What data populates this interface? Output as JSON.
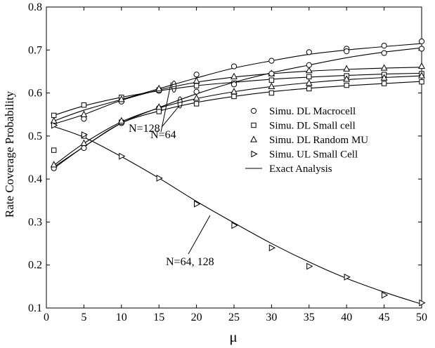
{
  "chart_data": {
    "type": "line",
    "xlabel": "μ",
    "ylabel": "Rate Coverage Probability",
    "xlim": [
      0,
      50
    ],
    "ylim": [
      0.1,
      0.8
    ],
    "xticks": [
      0,
      5,
      10,
      15,
      20,
      25,
      30,
      35,
      40,
      45,
      50
    ],
    "yticks": [
      0.1,
      0.2,
      0.3,
      0.4,
      0.5,
      0.6,
      0.7,
      0.8
    ],
    "grid": false,
    "legend_position": "right",
    "legend": [
      {
        "label": "Simu. DL Macrocell",
        "marker": "circle"
      },
      {
        "label": "Simu. DL Small cell",
        "marker": "square"
      },
      {
        "label": "Simu. DL Random MU",
        "marker": "triangle-up"
      },
      {
        "label": "Simu. UL Small Cell",
        "marker": "triangle-right"
      },
      {
        "label": "Exact Analysis",
        "marker": "line"
      }
    ],
    "series": [
      {
        "group": "N=128",
        "marker": "circle",
        "x": [
          1,
          5,
          10,
          15,
          20,
          25,
          30,
          35,
          40,
          45,
          50
        ],
        "y": [
          0.53,
          0.54,
          0.58,
          0.605,
          0.643,
          0.662,
          0.675,
          0.695,
          0.703,
          0.71,
          0.72
        ]
      },
      {
        "group": "N=128",
        "marker": "square",
        "x": [
          1,
          5,
          10,
          15,
          20,
          25,
          30,
          35,
          40,
          45,
          50
        ],
        "y": [
          0.548,
          0.572,
          0.59,
          0.607,
          0.617,
          0.623,
          0.63,
          0.638,
          0.64,
          0.643,
          0.645
        ]
      },
      {
        "group": "N=128",
        "marker": "triangle-up",
        "x": [
          1,
          5,
          10,
          15,
          20,
          25,
          30,
          35,
          40,
          45,
          50
        ],
        "y": [
          0.535,
          0.55,
          0.585,
          0.61,
          0.628,
          0.638,
          0.645,
          0.652,
          0.656,
          0.658,
          0.662
        ]
      },
      {
        "group": "N=64",
        "marker": "circle",
        "x": [
          1,
          5,
          10,
          15,
          20,
          25,
          30,
          35,
          40,
          45,
          50
        ],
        "y": [
          0.425,
          0.472,
          0.53,
          0.565,
          0.603,
          0.62,
          0.645,
          0.665,
          0.697,
          0.693,
          0.703
        ]
      },
      {
        "group": "N=64",
        "marker": "square",
        "x": [
          1,
          5,
          10,
          15,
          20,
          25,
          30,
          35,
          40,
          45,
          50
        ],
        "y": [
          0.467,
          0.5,
          0.532,
          0.557,
          0.575,
          0.592,
          0.6,
          0.61,
          0.618,
          0.622,
          0.626
        ]
      },
      {
        "group": "N=64",
        "marker": "triangle-up",
        "x": [
          1,
          5,
          10,
          15,
          20,
          25,
          30,
          35,
          40,
          45,
          50
        ],
        "y": [
          0.433,
          0.483,
          0.535,
          0.567,
          0.588,
          0.603,
          0.615,
          0.623,
          0.632,
          0.635,
          0.64
        ]
      },
      {
        "group": "N=64, 128",
        "marker": "triangle-right",
        "x": [
          1,
          5,
          10,
          15,
          20,
          25,
          30,
          35,
          40,
          45,
          50
        ],
        "y": [
          0.525,
          0.503,
          0.453,
          0.402,
          0.342,
          0.292,
          0.24,
          0.197,
          0.172,
          0.13,
          0.112
        ]
      }
    ],
    "analysis_curves": [
      {
        "x": [
          1,
          5,
          10,
          15,
          20,
          25,
          30,
          35,
          40,
          45,
          50
        ],
        "y": [
          0.535,
          0.56,
          0.585,
          0.61,
          0.635,
          0.658,
          0.675,
          0.69,
          0.7,
          0.708,
          0.715
        ]
      },
      {
        "x": [
          1,
          5,
          10,
          15,
          20,
          25,
          30,
          35,
          40,
          45,
          50
        ],
        "y": [
          0.548,
          0.57,
          0.59,
          0.605,
          0.617,
          0.625,
          0.632,
          0.637,
          0.641,
          0.644,
          0.646
        ]
      },
      {
        "x": [
          1,
          5,
          10,
          15,
          20,
          25,
          30,
          35,
          40,
          45,
          50
        ],
        "y": [
          0.528,
          0.55,
          0.583,
          0.607,
          0.625,
          0.637,
          0.645,
          0.651,
          0.655,
          0.658,
          0.66
        ]
      },
      {
        "x": [
          1,
          5,
          10,
          15,
          20,
          25,
          30,
          35,
          40,
          45,
          50
        ],
        "y": [
          0.425,
          0.475,
          0.53,
          0.566,
          0.598,
          0.625,
          0.647,
          0.665,
          0.682,
          0.695,
          0.705
        ]
      },
      {
        "x": [
          1,
          5,
          10,
          15,
          20,
          25,
          30,
          35,
          40,
          45,
          50
        ],
        "y": [
          0.428,
          0.475,
          0.53,
          0.558,
          0.578,
          0.592,
          0.603,
          0.611,
          0.617,
          0.622,
          0.627
        ]
      },
      {
        "x": [
          1,
          5,
          10,
          15,
          20,
          25,
          30,
          35,
          40,
          45,
          50
        ],
        "y": [
          0.432,
          0.483,
          0.533,
          0.565,
          0.587,
          0.603,
          0.615,
          0.624,
          0.631,
          0.636,
          0.64
        ]
      },
      {
        "x": [
          1,
          5,
          10,
          15,
          20,
          25,
          30,
          35,
          40,
          45,
          50
        ],
        "y": [
          0.522,
          0.497,
          0.452,
          0.402,
          0.348,
          0.298,
          0.25,
          0.207,
          0.169,
          0.137,
          0.109
        ]
      }
    ],
    "annotations": [
      {
        "text": "N=128",
        "points_to": [
          17,
          0.615
        ]
      },
      {
        "text": "N=64",
        "points_to": [
          17.8,
          0.578
        ]
      },
      {
        "text": "N=64, 128",
        "points_to": [
          22,
          0.322
        ]
      }
    ]
  }
}
